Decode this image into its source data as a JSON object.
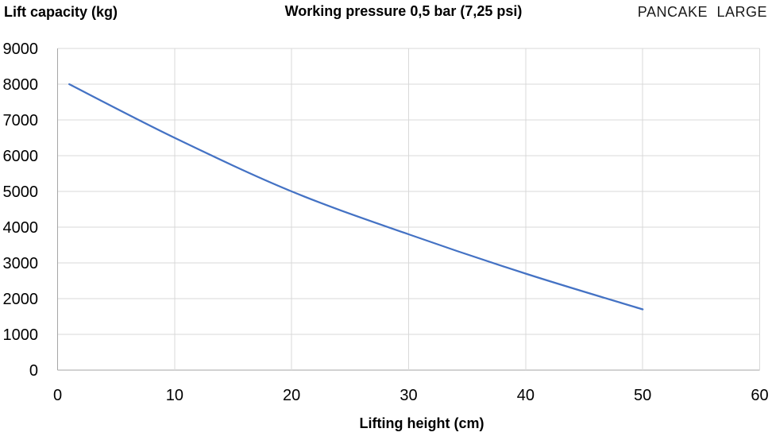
{
  "header": {
    "y_axis_title": "Lift capacity (kg)",
    "chart_title": "Working pressure 0,5 bar (7,25 psi)",
    "series_label": "PANCAKE LARGE"
  },
  "chart_data": {
    "type": "line",
    "title": "Working pressure 0,5 bar (7,25 psi)",
    "xlabel": "Lifting height (cm)",
    "ylabel": "Lift capacity (kg)",
    "series": [
      {
        "name": "PANCAKE LARGE",
        "x": [
          1,
          10,
          20,
          30,
          40,
          50
        ],
        "y": [
          8000,
          6500,
          5000,
          3800,
          2700,
          1700
        ]
      }
    ],
    "xlim": [
      0,
      60
    ],
    "ylim": [
      0,
      9000
    ],
    "x_ticks": [
      0,
      10,
      20,
      30,
      40,
      50,
      60
    ],
    "y_ticks": [
      0,
      1000,
      2000,
      3000,
      4000,
      5000,
      6000,
      7000,
      8000,
      9000
    ],
    "grid": true,
    "legend_position": "none",
    "colors": {
      "line": "#4472C4",
      "gridline": "#D9D9D9",
      "axis": "#A6A6A6",
      "text": "#000000"
    }
  }
}
